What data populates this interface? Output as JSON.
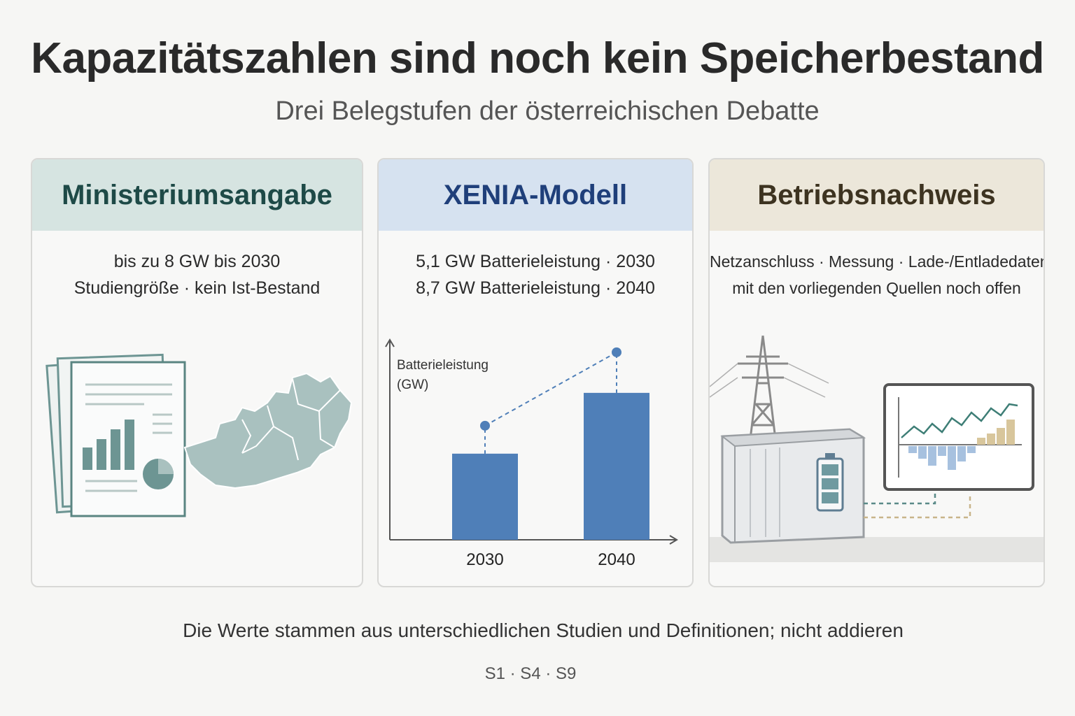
{
  "header": {
    "title": "Kapazitätszahlen sind noch kein Speicherbestand",
    "subtitle": "Drei Belegstufen der österreichischen Debatte"
  },
  "panels": [
    {
      "heading": "Ministeriumsangabe",
      "lines": [
        "bis zu  8 GW bis 2030",
        "Studiengröße · kein Ist-Bestand"
      ],
      "illustration": [
        "document-stack-icon",
        "austria-map-icon"
      ]
    },
    {
      "heading": "XENIA-Modell",
      "lines": [
        "5,1 GW Batterieleistung · 2030",
        "8,7 GW Batterieleistung · 2040"
      ]
    },
    {
      "heading": "Betriebsnachweis",
      "lines": [
        "Netzanschluss · Messung · Lade-/Entladedaten",
        "mit den vorliegenden Quellen noch offen"
      ],
      "illustration": [
        "power-pylon-icon",
        "battery-container-icon",
        "monitor-chart-icon"
      ]
    }
  ],
  "chart_data": {
    "type": "bar",
    "categories": [
      "2030",
      "2040"
    ],
    "values": [
      5.1,
      8.7
    ],
    "ylabel": "Batterieleistung\n(GW)",
    "xlabel": "",
    "ylim": [
      0,
      13
    ],
    "grid": false,
    "colors": {
      "bar": "#4f7fb8",
      "marker": "#4f7fb8"
    }
  },
  "footer": {
    "note": "Die Werte stammen aus unterschiedlichen Studien und Definitionen; nicht addieren",
    "sources": "S1 · S4 · S9"
  },
  "colors": {
    "panel1_head": "#d6e4e1",
    "panel2_head": "#d6e2f0",
    "panel3_head": "#ece7da",
    "accent_blue": "#4f7fb8",
    "accent_teal": "#5a8a88",
    "accent_sand": "#c8b48a"
  }
}
